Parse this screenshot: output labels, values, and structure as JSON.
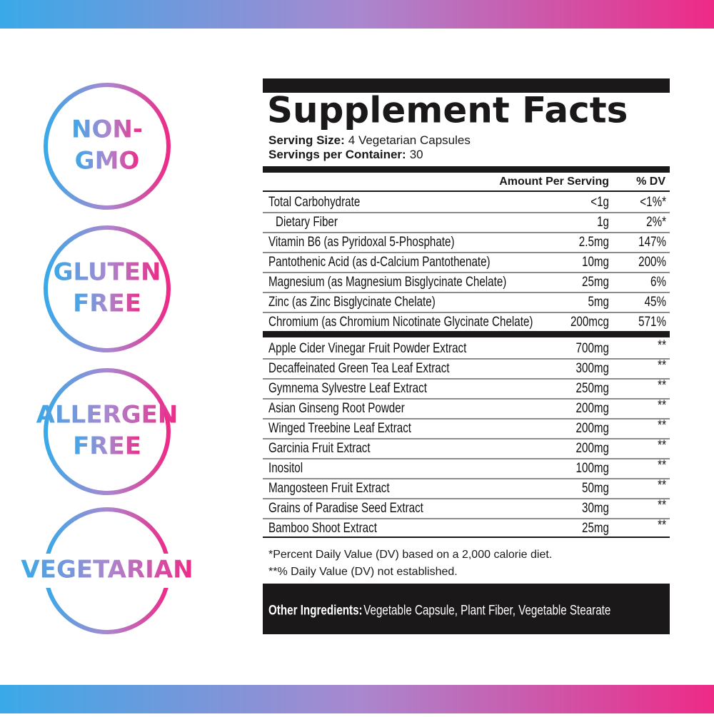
{
  "badges": [
    {
      "lines": [
        "NON-",
        "GMO"
      ]
    },
    {
      "lines": [
        "GLUTEN",
        "FREE"
      ]
    },
    {
      "lines": [
        "ALLERGEN",
        "FREE"
      ]
    },
    {
      "lines": [
        "VEGETARIAN"
      ]
    }
  ],
  "facts": {
    "title": "Supplement Facts",
    "serving_size": {
      "label": "Serving Size:",
      "value": "4 Vegetarian Capsules"
    },
    "servings_per_container": {
      "label": "Servings per Container:",
      "value": "30"
    },
    "header": {
      "amount": "Amount Per Serving",
      "dv": "% DV"
    },
    "rows": [
      [
        "Total Carbohydrate",
        "<1g",
        "<1%*"
      ],
      [
        "Dietary Fiber",
        "1g",
        "2%*"
      ],
      [
        "Vitamin B6 (as Pyridoxal 5-Phosphate)",
        "2.5mg",
        "147%"
      ],
      [
        "Pantothenic Acid (as d-Calcium Pantothenate)",
        "10mg",
        "200%"
      ],
      [
        "Magnesium (as Magnesium Bisglycinate Chelate)",
        "25mg",
        "6%"
      ],
      [
        "Zinc (as Zinc Bisglycinate Chelate)",
        "5mg",
        "45%"
      ],
      [
        "Chromium (as Chromium Nicotinate Glycinate Chelate)",
        "200mcg",
        "571%"
      ]
    ],
    "blend_rows": [
      [
        "Apple Cider Vinegar Fruit Powder Extract",
        "700mg",
        "**"
      ],
      [
        "Decaffeinated Green Tea Leaf Extract",
        "300mg",
        "**"
      ],
      [
        "Gymnema Sylvestre Leaf Extract",
        "250mg",
        "**"
      ],
      [
        "Asian Ginseng Root Powder",
        "200mg",
        "**"
      ],
      [
        "Winged Treebine Leaf Extract",
        "200mg",
        "**"
      ],
      [
        "Garcinia Fruit Extract",
        "200mg",
        "**"
      ],
      [
        "Inositol",
        "100mg",
        "**"
      ],
      [
        "Mangosteen Fruit Extract",
        "50mg",
        "**"
      ],
      [
        "Grains of Paradise Seed Extract",
        "30mg",
        "**"
      ],
      [
        "Bamboo Shoot Extract",
        "25mg",
        "**"
      ]
    ],
    "footnotes": [
      "*Percent Daily Value (DV) based on a 2,000 calorie diet.",
      "**% Daily Value (DV) not established."
    ],
    "other_ingredients": {
      "label": "Other Ingredients:",
      "value": "Vegetable Capsule, Plant Fiber, Vegetable Stearate"
    }
  }
}
